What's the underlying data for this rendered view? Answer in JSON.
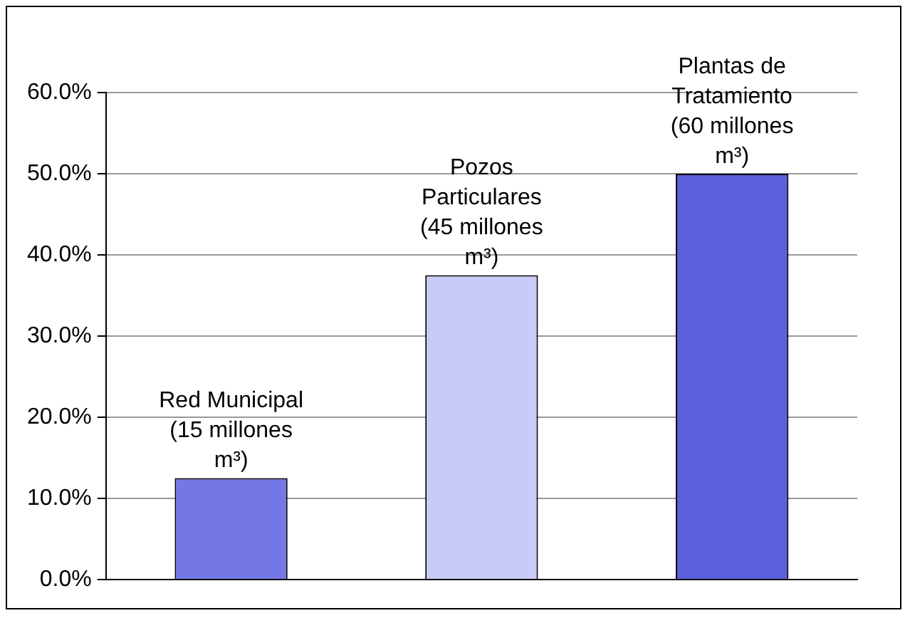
{
  "chart_data": {
    "type": "bar",
    "categories": [
      "Red Municipal (15 millones m³)",
      "Pozos Particulares (45 millones m³)",
      "Plantas de Tratamiento (60 millones m³)"
    ],
    "values": [
      12.5,
      37.5,
      50.0
    ],
    "colors": [
      "#7478e6",
      "#c9cbf6",
      "#5b5fd9"
    ],
    "ylim": [
      0,
      60
    ],
    "yticks": [
      {
        "value": 0,
        "label": "0.0%"
      },
      {
        "value": 10,
        "label": "10.0%"
      },
      {
        "value": 20,
        "label": "20.0%"
      },
      {
        "value": 30,
        "label": "30.0%"
      },
      {
        "value": 40,
        "label": "40.0%"
      },
      {
        "value": 50,
        "label": "50.0%"
      },
      {
        "value": 60,
        "label": "60.0%"
      }
    ],
    "grid": "y",
    "legend": false,
    "tick_labels": "y"
  }
}
